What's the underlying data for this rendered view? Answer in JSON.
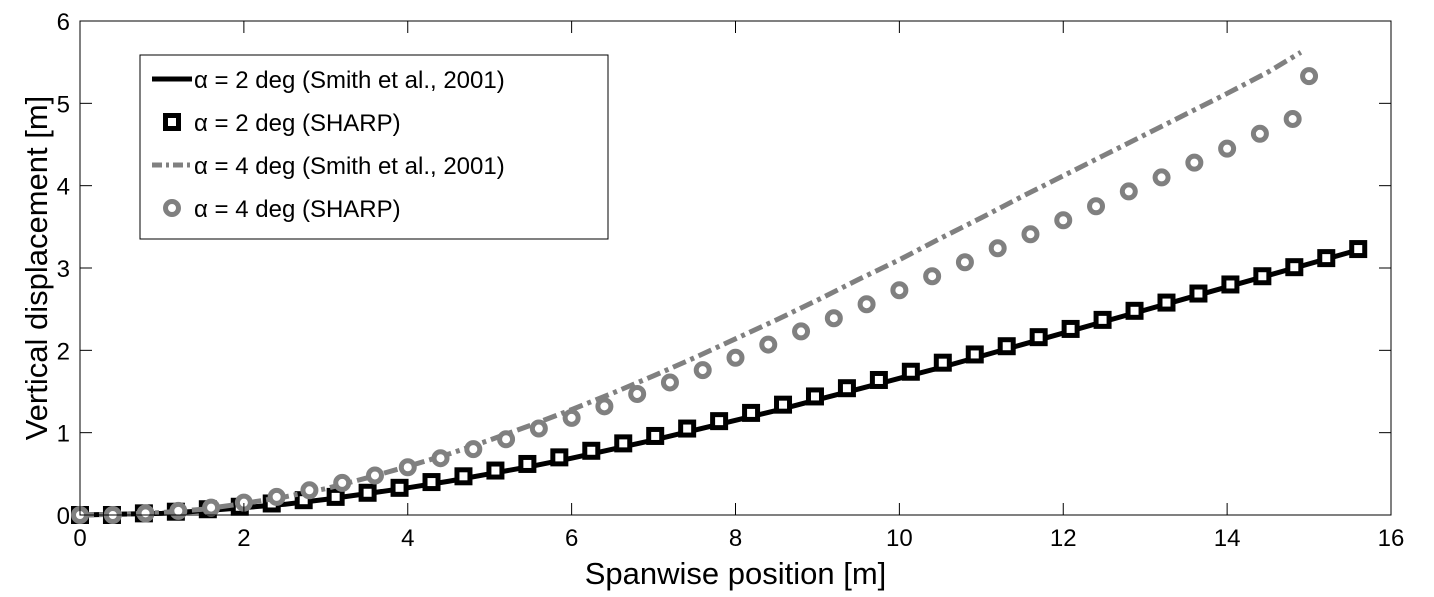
{
  "chart_data": {
    "type": "line",
    "title": "",
    "xlabel": "Spanwise position [m]",
    "ylabel": "Vertical displacement [m]",
    "xlim": [
      0,
      16
    ],
    "ylim": [
      0,
      6
    ],
    "xticks": [
      0,
      2,
      4,
      6,
      8,
      10,
      12,
      14,
      16
    ],
    "yticks": [
      0,
      1,
      2,
      3,
      4,
      5,
      6
    ],
    "grid": false,
    "legend_position": "top-left",
    "series": [
      {
        "name": "α = 2 deg (Smith et al., 2001)",
        "style": "solid-line",
        "color": "#000000",
        "x": [
          0,
          0.5,
          1,
          1.5,
          2,
          2.5,
          3,
          3.5,
          4,
          4.5,
          5,
          5.5,
          6,
          6.5,
          7,
          7.5,
          8,
          8.5,
          9,
          9.5,
          10,
          10.5,
          11,
          11.5,
          12,
          12.5,
          13,
          13.5,
          14,
          14.5,
          15,
          15.6
        ],
        "y": [
          0,
          0.01,
          0.02,
          0.05,
          0.09,
          0.13,
          0.19,
          0.26,
          0.33,
          0.41,
          0.5,
          0.59,
          0.69,
          0.8,
          0.91,
          1.03,
          1.15,
          1.27,
          1.4,
          1.53,
          1.66,
          1.79,
          1.93,
          2.07,
          2.21,
          2.35,
          2.49,
          2.63,
          2.77,
          2.91,
          3.05,
          3.22
        ]
      },
      {
        "name": "α = 2 deg (SHARP)",
        "style": "square-markers",
        "color": "#000000",
        "x": [
          0,
          0.39,
          0.78,
          1.17,
          1.56,
          1.95,
          2.34,
          2.73,
          3.12,
          3.51,
          3.9,
          4.29,
          4.68,
          5.07,
          5.46,
          5.85,
          6.24,
          6.63,
          7.02,
          7.41,
          7.8,
          8.19,
          8.58,
          8.97,
          9.36,
          9.75,
          10.14,
          10.53,
          10.92,
          11.31,
          11.7,
          12.09,
          12.48,
          12.87,
          13.26,
          13.65,
          14.04,
          14.43,
          14.82,
          15.21,
          15.6
        ],
        "y": [
          0,
          0.0,
          0.02,
          0.04,
          0.07,
          0.1,
          0.14,
          0.18,
          0.22,
          0.27,
          0.33,
          0.4,
          0.47,
          0.54,
          0.62,
          0.7,
          0.78,
          0.87,
          0.96,
          1.05,
          1.14,
          1.24,
          1.34,
          1.44,
          1.54,
          1.64,
          1.74,
          1.85,
          1.95,
          2.05,
          2.16,
          2.26,
          2.37,
          2.48,
          2.58,
          2.69,
          2.8,
          2.9,
          3.01,
          3.12,
          3.23
        ]
      },
      {
        "name": "α = 4 deg (Smith et al., 2001)",
        "style": "dash-dot-line",
        "color": "#808080",
        "x": [
          0,
          0.5,
          1,
          1.5,
          2,
          2.5,
          3,
          3.5,
          4,
          4.5,
          5,
          5.5,
          6,
          6.5,
          7,
          7.5,
          8,
          8.5,
          9,
          9.5,
          10,
          10.5,
          11,
          11.5,
          12,
          12.5,
          13,
          13.5,
          14,
          14.5,
          14.9
        ],
        "y": [
          0,
          0.01,
          0.03,
          0.07,
          0.14,
          0.22,
          0.32,
          0.45,
          0.59,
          0.74,
          0.91,
          1.09,
          1.28,
          1.48,
          1.69,
          1.91,
          2.14,
          2.37,
          2.61,
          2.86,
          3.1,
          3.36,
          3.61,
          3.87,
          4.12,
          4.37,
          4.62,
          4.87,
          5.12,
          5.38,
          5.62
        ]
      },
      {
        "name": "α = 4 deg (SHARP)",
        "style": "circle-markers",
        "color": "#808080",
        "x": [
          0,
          0.4,
          0.8,
          1.2,
          1.6,
          2.0,
          2.4,
          2.8,
          3.2,
          3.6,
          4.0,
          4.4,
          4.8,
          5.2,
          5.6,
          6.0,
          6.4,
          6.8,
          7.2,
          7.6,
          8.0,
          8.4,
          8.8,
          9.2,
          9.6,
          10.0,
          10.4,
          10.8,
          11.2,
          11.6,
          12.0,
          12.4,
          12.8,
          13.2,
          13.6,
          14.0,
          14.4,
          14.8,
          15.0
        ],
        "y": [
          0,
          0.0,
          0.02,
          0.05,
          0.09,
          0.15,
          0.22,
          0.3,
          0.39,
          0.48,
          0.58,
          0.69,
          0.8,
          0.92,
          1.05,
          1.18,
          1.32,
          1.47,
          1.61,
          1.76,
          1.91,
          2.07,
          2.23,
          2.39,
          2.56,
          2.73,
          2.9,
          3.07,
          3.24,
          3.41,
          3.58,
          3.75,
          3.93,
          4.1,
          4.28,
          4.45,
          4.63,
          4.81,
          5.33
        ]
      }
    ]
  }
}
